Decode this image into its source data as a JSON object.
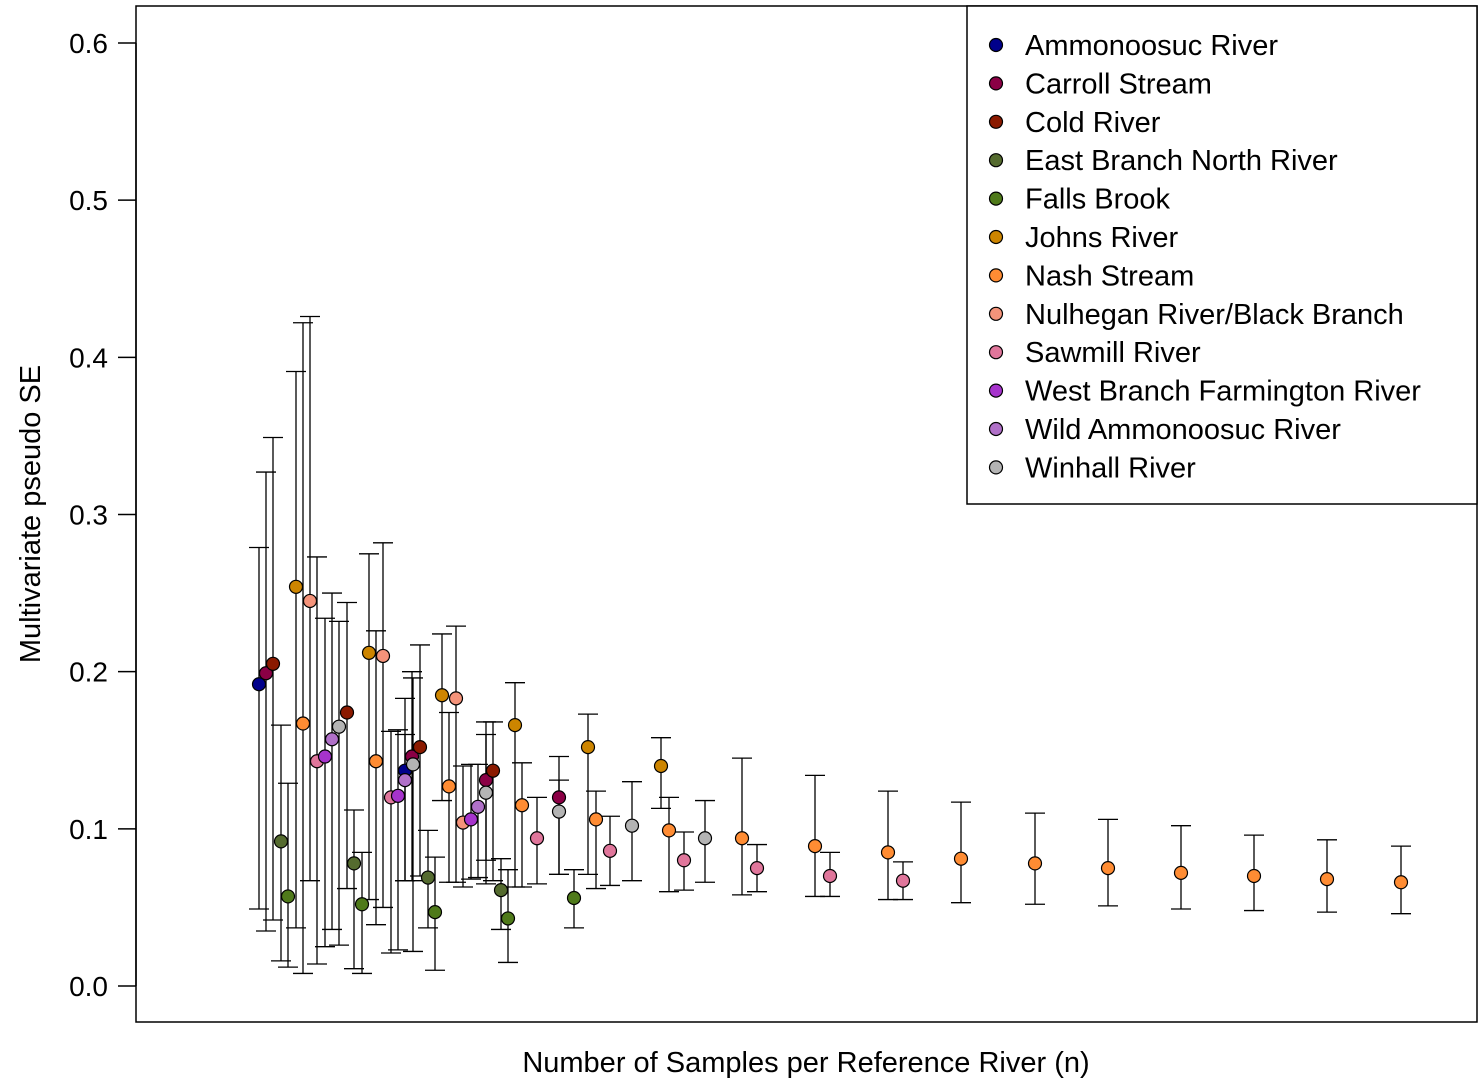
{
  "chart_data": {
    "type": "scatter",
    "title": "",
    "xlabel": "Number of Samples per Reference River (n)",
    "ylabel": "Multivariate pseudo SE",
    "ylim": [
      -0.023,
      0.623
    ],
    "yticks": [
      0.0,
      0.1,
      0.2,
      0.3,
      0.4,
      0.5,
      0.6
    ],
    "ytick_labels": [
      "0.0",
      "0.1",
      "0.2",
      "0.3",
      "0.4",
      "0.5",
      "0.6"
    ],
    "xticks_shown": false,
    "grid": false,
    "legend_position": "top-right",
    "x_note": "x values are the sample number n (tick labels not printed); estimated as evenly spaced steps",
    "series": [
      {
        "name": "Ammonoosuc River",
        "color": "#00008B",
        "points": [
          {
            "x": 3,
            "y": 0.192,
            "lo": 0.049,
            "hi": 0.279
          },
          {
            "x": 12,
            "y": 0.137,
            "lo": 0.067,
            "hi": 0.16
          }
        ]
      },
      {
        "name": "Carroll Stream",
        "color": "#8B0045",
        "points": [
          {
            "x": 4,
            "y": 0.199,
            "lo": 0.035,
            "hi": 0.327
          },
          {
            "x": 13,
            "y": 0.146,
            "lo": 0.067,
            "hi": 0.2
          },
          {
            "x": 21,
            "y": 0.131,
            "lo": 0.08,
            "hi": 0.168
          },
          {
            "x": 27,
            "y": 0.12,
            "lo": 0.071,
            "hi": 0.146
          }
        ]
      },
      {
        "name": "Cold River",
        "color": "#8B1A00",
        "points": [
          {
            "x": 5,
            "y": 0.205,
            "lo": 0.042,
            "hi": 0.349
          },
          {
            "x": 16,
            "y": 0.152,
            "lo": 0.07,
            "hi": 0.217
          },
          {
            "x": 23,
            "y": 0.137,
            "lo": 0.067,
            "hi": 0.168
          },
          {
            "x": 45,
            "y": 0.174,
            "lo": 0.062,
            "hi": 0.244
          }
        ]
      },
      {
        "name": "East Branch North River",
        "color": "#556B2F",
        "points": [
          {
            "x": 6,
            "y": 0.092,
            "lo": 0.016,
            "hi": 0.166
          },
          {
            "x": 11,
            "y": 0.078,
            "lo": 0.011,
            "hi": 0.112
          },
          {
            "x": 15,
            "y": 0.069,
            "lo": 0.037,
            "hi": 0.099
          },
          {
            "x": 22,
            "y": 0.061,
            "lo": 0.036,
            "hi": 0.081
          }
        ]
      },
      {
        "name": "Falls Brook",
        "color": "#4F7A1A",
        "points": [
          {
            "x": 7,
            "y": 0.057,
            "lo": 0.012,
            "hi": 0.129
          },
          {
            "x": 14,
            "y": 0.052,
            "lo": 0.008,
            "hi": 0.085
          },
          {
            "x": 17,
            "y": 0.047,
            "lo": 0.01,
            "hi": 0.082
          },
          {
            "x": 24,
            "y": 0.043,
            "lo": 0.015,
            "hi": 0.074
          },
          {
            "x": 28,
            "y": 0.056,
            "lo": 0.037,
            "hi": 0.074
          }
        ]
      },
      {
        "name": "Johns River",
        "color": "#CD8500",
        "points": [
          {
            "x": 8,
            "y": 0.254,
            "lo": 0.037,
            "hi": 0.391
          },
          {
            "x": 18,
            "y": 0.212,
            "lo": 0.055,
            "hi": 0.275
          },
          {
            "x": 19,
            "y": 0.185,
            "lo": 0.118,
            "hi": 0.224
          },
          {
            "x": 25,
            "y": 0.166,
            "lo": 0.063,
            "hi": 0.193
          },
          {
            "x": 29,
            "y": 0.152,
            "lo": 0.071,
            "hi": 0.173
          },
          {
            "x": 30,
            "y": 0.14,
            "lo": 0.113,
            "hi": 0.158
          }
        ]
      },
      {
        "name": "Nash Stream",
        "color": "#FF8C33",
        "points": [
          {
            "x": 9,
            "y": 0.167,
            "lo": 0.008,
            "hi": 0.422
          },
          {
            "x": 20,
            "y": 0.143,
            "lo": 0.039,
            "hi": 0.226
          },
          {
            "x": 26,
            "y": 0.127,
            "lo": 0.066,
            "hi": 0.174
          },
          {
            "x": 31,
            "y": 0.115,
            "lo": 0.063,
            "hi": 0.142
          },
          {
            "x": 32,
            "y": 0.106,
            "lo": 0.062,
            "hi": 0.124
          },
          {
            "x": 33,
            "y": 0.099,
            "lo": 0.06,
            "hi": 0.12
          },
          {
            "x": 34,
            "y": 0.094,
            "lo": 0.058,
            "hi": 0.145
          },
          {
            "x": 35,
            "y": 0.089,
            "lo": 0.057,
            "hi": 0.134
          },
          {
            "x": 36,
            "y": 0.085,
            "lo": 0.055,
            "hi": 0.124
          },
          {
            "x": 37,
            "y": 0.081,
            "lo": 0.053,
            "hi": 0.117
          },
          {
            "x": 38,
            "y": 0.078,
            "lo": 0.052,
            "hi": 0.11
          },
          {
            "x": 39,
            "y": 0.075,
            "lo": 0.051,
            "hi": 0.106
          },
          {
            "x": 40,
            "y": 0.072,
            "lo": 0.049,
            "hi": 0.102
          },
          {
            "x": 41,
            "y": 0.07,
            "lo": 0.048,
            "hi": 0.096
          },
          {
            "x": 42,
            "y": 0.068,
            "lo": 0.047,
            "hi": 0.093
          },
          {
            "x": 43,
            "y": 0.066,
            "lo": 0.046,
            "hi": 0.089
          }
        ]
      },
      {
        "name": "Nulhegan River/Black Branch",
        "color": "#F4937A",
        "points": [
          {
            "x": 10,
            "y": 0.245,
            "lo": 0.067,
            "hi": 0.426
          },
          {
            "x": 44,
            "y": 0.21,
            "lo": 0.05,
            "hi": 0.282
          },
          {
            "x": 46,
            "y": 0.183,
            "lo": 0.066,
            "hi": 0.229
          },
          {
            "x": 47,
            "y": 0.104,
            "lo": 0.063,
            "hi": 0.14
          }
        ]
      },
      {
        "name": "Sawmill River",
        "color": "#E0769B",
        "points": [
          {
            "x": 48,
            "y": 0.143,
            "lo": 0.014,
            "hi": 0.273
          },
          {
            "x": 49,
            "y": 0.12,
            "lo": 0.021,
            "hi": 0.162
          },
          {
            "x": 50,
            "y": 0.094,
            "lo": 0.065,
            "hi": 0.12
          },
          {
            "x": 51,
            "y": 0.086,
            "lo": 0.064,
            "hi": 0.108
          },
          {
            "x": 52,
            "y": 0.08,
            "lo": 0.061,
            "hi": 0.098
          },
          {
            "x": 53,
            "y": 0.075,
            "lo": 0.06,
            "hi": 0.09
          },
          {
            "x": 54,
            "y": 0.07,
            "lo": 0.057,
            "hi": 0.085
          },
          {
            "x": 55,
            "y": 0.067,
            "lo": 0.055,
            "hi": 0.079
          }
        ]
      },
      {
        "name": "West Branch Farmington River",
        "color": "#A633CC",
        "points": [
          {
            "x": 56,
            "y": 0.146,
            "lo": 0.025,
            "hi": 0.234
          },
          {
            "x": 57,
            "y": 0.121,
            "lo": 0.023,
            "hi": 0.163
          },
          {
            "x": 58,
            "y": 0.106,
            "lo": 0.068,
            "hi": 0.141
          }
        ]
      },
      {
        "name": "Wild Ammonoosuc River",
        "color": "#B070C8",
        "points": [
          {
            "x": 59,
            "y": 0.157,
            "lo": 0.036,
            "hi": 0.25
          },
          {
            "x": 60,
            "y": 0.131,
            "lo": 0.067,
            "hi": 0.183
          },
          {
            "x": 61,
            "y": 0.114,
            "lo": 0.069,
            "hi": 0.141
          }
        ]
      },
      {
        "name": "Winhall River",
        "color": "#B4B4B4",
        "points": [
          {
            "x": 62,
            "y": 0.165,
            "lo": 0.026,
            "hi": 0.232
          },
          {
            "x": 63,
            "y": 0.141,
            "lo": 0.022,
            "hi": 0.196
          },
          {
            "x": 64,
            "y": 0.123,
            "lo": 0.065,
            "hi": 0.16
          },
          {
            "x": 65,
            "y": 0.111,
            "lo": 0.071,
            "hi": 0.131
          },
          {
            "x": 66,
            "y": 0.102,
            "lo": 0.067,
            "hi": 0.13
          },
          {
            "x": 67,
            "y": 0.094,
            "lo": 0.066,
            "hi": 0.118
          }
        ]
      }
    ]
  }
}
